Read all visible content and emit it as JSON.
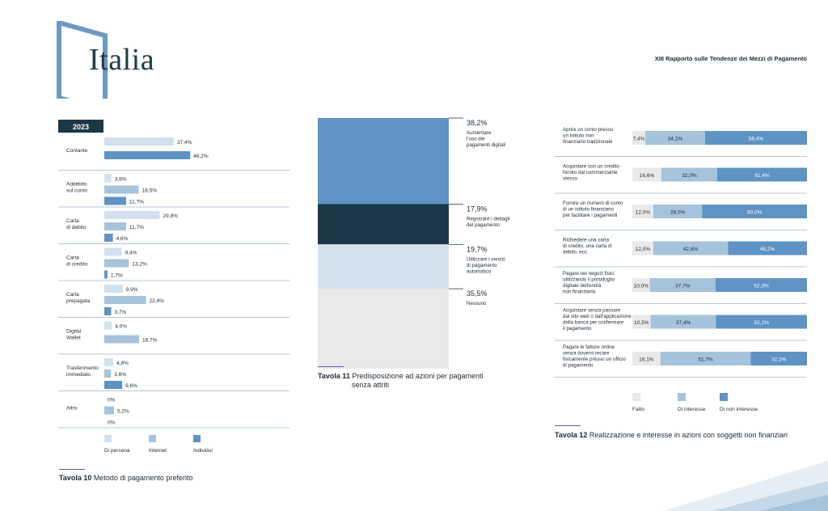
{
  "header": {
    "logo_text": "Italia",
    "report_title": "XIII Rapporto sulle Tendenze dei Mezzi di Pagamento"
  },
  "colors": {
    "light": "#d3e1ee",
    "mid": "#a6c3dc",
    "dark": "#5e93c3",
    "navy": "#1c3846",
    "grey": "#e9e9e9",
    "frame": "#6e99c4"
  },
  "chart_data": [
    {
      "type": "bar",
      "orientation": "horizontal",
      "year_label": "2023",
      "categories": [
        "Contante",
        "Addebito\nsul conto",
        "Carta\ndi debito",
        "Carta\ndi credito",
        "Carta\nprepagata",
        "Digital\nWallet",
        "Trasferimento\nimmediato",
        "Altro"
      ],
      "series": [
        {
          "name": "Di persona",
          "values": [
            37.4,
            3.8,
            29.8,
            9.4,
            9.9,
            4.0,
            4.8,
            0
          ],
          "labels": [
            "37,4%",
            "3,8%",
            "29,8%",
            "9,4%",
            "9,9%",
            "4,0%",
            "4,8%",
            "0%"
          ]
        },
        {
          "name": "Internet",
          "values": [
            null,
            18.5,
            11.7,
            13.2,
            22.4,
            18.7,
            3.6,
            5.2
          ],
          "labels": [
            "",
            "18,5%",
            "11,7%",
            "13,2%",
            "22,4%",
            "18,7%",
            "3,6%",
            "5,2%"
          ]
        },
        {
          "name": "Individui",
          "values": [
            46.2,
            11.7,
            4.6,
            1.7,
            3.7,
            null,
            9.6,
            0
          ],
          "labels": [
            "46,2%",
            "11,7%",
            "4,6%",
            "1,7%",
            "3,7%",
            "",
            "9,6%",
            "0%"
          ]
        }
      ],
      "caption_number": "Tavola 10",
      "caption_text": "Metodo di pagamento preferito"
    },
    {
      "type": "stacked-bar",
      "segments": [
        {
          "value": 38.2,
          "label": "38,2%",
          "name": "Aumentare\nl'uso dei\npagamenti digitali"
        },
        {
          "value": 17.9,
          "label": "17,9%",
          "name": "Registrare i dettagli\ndel pagamento"
        },
        {
          "value": 19.7,
          "label": "19,7%",
          "name": "Utilizzare i servizi\ndi pagamento\nautomatico"
        },
        {
          "value": 35.5,
          "label": "35,5%",
          "name": "Nessuno"
        }
      ],
      "caption_number": "Tavola 11",
      "caption_text_line1": "Predisposizione ad azioni per pagamenti",
      "caption_text_line2": "senza attriti"
    },
    {
      "type": "stacked-bar",
      "orientation": "horizontal",
      "categories": [
        "Aprire un conto presso\nun istituto non\nfinanziario tradizionale",
        "Acquistare con un credito\nfornito dal commerciante\nstesso",
        "Fornire un numero di conto\ndi un istituto finanziario\nper facilitare i pagamenti",
        "Richiedere una carta\ndi credito, una carta di\ndebito, ecc.",
        "Pagare nei negozi fisici\nutilizzando il portafoglio\ndigitale dell'entità\nnon finanziaria",
        "Acquistare senza passare\ndal sito web o dall'applicazione\ndella banca per confermare\nil pagamento",
        "Pagare le fatture online\nsenza doversi recare\nfisicamente presso un ufficio\ndi pagamento"
      ],
      "series": [
        {
          "name": "Fatto",
          "values": [
            7.4,
            16.6,
            12.0,
            12.0,
            10.0,
            10.5,
            16.1
          ],
          "labels": [
            "7,4%",
            "16,6%",
            "12,0%",
            "12,0%",
            "10,0%",
            "10,5%",
            "16,1%"
          ]
        },
        {
          "name": "Di interesse",
          "values": [
            34.2,
            32.0,
            28.0,
            42.8,
            37.7,
            37.4,
            51.7
          ],
          "labels": [
            "34,2%",
            "32,0%",
            "28,0%",
            "42,8%",
            "37,7%",
            "37,4%",
            "51,7%"
          ]
        },
        {
          "name": "Di non interesse",
          "values": [
            58.4,
            51.4,
            60.0,
            45.2,
            52.3,
            52.1,
            32.2
          ],
          "labels": [
            "58,4%",
            "51,4%",
            "60,0%",
            "45,2%",
            "52,3%",
            "52,1%",
            "32,2%"
          ]
        }
      ],
      "caption_number": "Tavola 12",
      "caption_text": "Realizzazione e interesse in azioni con soggetti non finanziari"
    }
  ]
}
